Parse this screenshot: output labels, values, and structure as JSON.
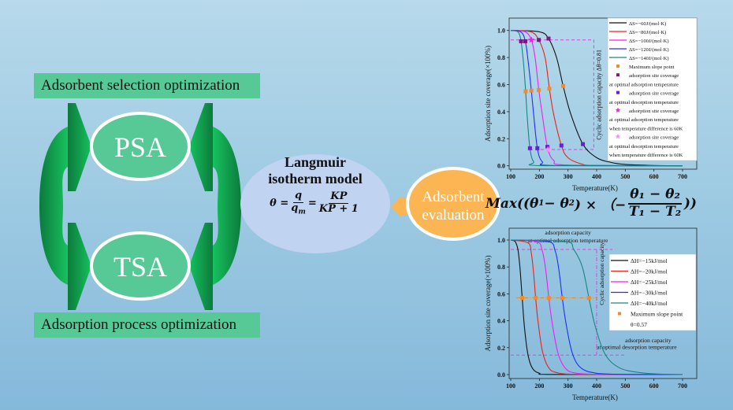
{
  "left": {
    "top_label": "Adsorbent selection optimization",
    "bottom_label": "Adsorption process optimization",
    "psa": "PSA",
    "tsa": "TSA"
  },
  "center": {
    "title_line1": "Langmuir",
    "title_line2": "isotherm model",
    "eq_lhs": "θ =",
    "eq_q": "q",
    "eq_qm": "q",
    "eq_qm_sub": "m",
    "eq_eq2": "=",
    "eq_kp": "KP",
    "eq_kp1": "KP + 1"
  },
  "evaluation": {
    "line1": "Adsorbent",
    "line2": "evaluation"
  },
  "objective": {
    "prefix": "Max((θ",
    "s1": "1",
    "minus": " − θ",
    "s2": "2",
    "mid": ") × （−",
    "num": "θ₁ − θ₂",
    "den": "T₁ − T₂",
    "suffix": "))"
  },
  "colors": {
    "green_box": "#56c996",
    "arrow_green": "#12a050",
    "langmuir": "#c0d4f2",
    "evaluation": "#fbb552",
    "max_slope": "#f08a2e"
  },
  "chart_data": [
    {
      "type": "line",
      "xlabel": "Temperature(K)",
      "ylabel": "Adsorption site coverage(×100%)",
      "xlim": [
        100,
        700
      ],
      "ylim": [
        0,
        1.0
      ],
      "xticks": [
        "100",
        "200",
        "300",
        "400",
        "500",
        "600",
        "700"
      ],
      "yticks": [
        "0.0",
        "0.2",
        "0.4",
        "0.6",
        "0.8",
        "1.0"
      ],
      "grid": false,
      "legend_placement": "top-right",
      "series": [
        {
          "name": "ΔS=−60J/(mol·K)",
          "color": "#111111",
          "points": [
            [
              100,
              1
            ],
            [
              200,
              0.99
            ],
            [
              232,
              0.94
            ],
            [
              260,
              0.8
            ],
            [
              283,
              0.59
            ],
            [
              310,
              0.38
            ],
            [
              352,
              0.16
            ],
            [
              400,
              0.06
            ],
            [
              450,
              0.025
            ],
            [
              500,
              0.01
            ],
            [
              600,
              0.002
            ],
            [
              700,
              0
            ]
          ]
        },
        {
          "name": "ΔS=−80J/(mol·K)",
          "color": "#e8231c",
          "points": [
            [
              100,
              1
            ],
            [
              170,
              0.99
            ],
            [
              198,
              0.93
            ],
            [
              220,
              0.8
            ],
            [
              235,
              0.57
            ],
            [
              250,
              0.38
            ],
            [
              277,
              0.15
            ],
            [
              300,
              0.06
            ],
            [
              350,
              0.012
            ],
            [
              400,
              0.003
            ],
            [
              700,
              0
            ]
          ]
        },
        {
          "name": "ΔS=−100J/(mol·K)",
          "color": "#f01ef0",
          "points": [
            [
              100,
              1
            ],
            [
              150,
              0.99
            ],
            [
              172,
              0.93
            ],
            [
              185,
              0.8
            ],
            [
              198,
              0.56
            ],
            [
              210,
              0.38
            ],
            [
              228,
              0.14
            ],
            [
              250,
              0.04
            ],
            [
              300,
              0.005
            ],
            [
              700,
              0
            ]
          ]
        },
        {
          "name": "ΔS=−120J/(mol·K)",
          "color": "#2030f0",
          "points": [
            [
              100,
              1
            ],
            [
              135,
              0.99
            ],
            [
              151,
              0.92
            ],
            [
              162,
              0.75
            ],
            [
              172,
              0.555
            ],
            [
              180,
              0.38
            ],
            [
              193,
              0.13
            ],
            [
              210,
              0.03
            ],
            [
              250,
              0.002
            ],
            [
              700,
              0
            ]
          ]
        },
        {
          "name": "ΔS=−140J/(mol·K)",
          "color": "#17877f",
          "points": [
            [
              100,
              1
            ],
            [
              125,
              0.99
            ],
            [
              136,
              0.92
            ],
            [
              145,
              0.75
            ],
            [
              152,
              0.55
            ],
            [
              158,
              0.35
            ],
            [
              167,
              0.13
            ],
            [
              180,
              0.03
            ],
            [
              210,
              0.001
            ],
            [
              700,
              0
            ]
          ]
        }
      ],
      "markers": [
        {
          "name": "Maximum slope point",
          "label_lines": [
            "Maximum slope point"
          ],
          "shape": "square",
          "color": "#f08a2e",
          "points": [
            [
              152,
              0.55
            ],
            [
              172,
              0.555
            ],
            [
              198,
              0.56
            ],
            [
              235,
              0.57
            ],
            [
              283,
              0.59
            ]
          ]
        },
        {
          "name": "adsorption site coverage at optimal adsorption temperature",
          "label_lines": [
            "adsorption site coverage",
            "at optimal adsorption temperature"
          ],
          "shape": "square",
          "color": "#7a1a80",
          "points": [
            [
              136,
              0.92
            ],
            [
              151,
              0.92
            ],
            [
              198,
              0.93
            ],
            [
              232,
              0.94
            ]
          ]
        },
        {
          "name": "adsorption site coverage at optimal desorption temperature",
          "label_lines": [
            "adsorption site coverage",
            "at optimal desorption temperature"
          ],
          "shape": "square",
          "color": "#6a1ed0",
          "points": [
            [
              167,
              0.13
            ],
            [
              193,
              0.13
            ],
            [
              228,
              0.14
            ],
            [
              277,
              0.15
            ],
            [
              352,
              0.16
            ]
          ]
        },
        {
          "name": "adsorption site coverage at optimal adsorption temperature when temperature difference is 60K",
          "label_lines": [
            "adsorption site coverage",
            "at optimal adsorption temperature",
            "when temperature difference is 60K"
          ],
          "shape": "star",
          "color": "#f01ef0",
          "points": [
            [
              172,
              0.93
            ]
          ]
        },
        {
          "name": "adsorption site coverage at optimal desorption temperature when temperature difference is 60K",
          "label_lines": [
            "adsorption site coverage",
            "at optimal desorption temperature",
            "when temperature difference is 60K"
          ],
          "shape": "star",
          "color": "#f68ff0",
          "points": [
            [
              230,
              0.12
            ]
          ]
        }
      ],
      "guides": {
        "upper_y": 0.93,
        "lower_y": 0.12,
        "x": 390,
        "color": "#e040e0"
      },
      "annotations": [
        "Cyclic adsorption capacity Δθ=0.81"
      ]
    },
    {
      "type": "line",
      "xlabel": "Temperature(K)",
      "ylabel": "Adsorption site coverage(×100%)",
      "xlim": [
        100,
        700
      ],
      "ylim": [
        0,
        1.0
      ],
      "xticks": [
        "100",
        "200",
        "300",
        "400",
        "500",
        "600",
        "700"
      ],
      "yticks": [
        "0.0",
        "0.2",
        "0.4",
        "0.6",
        "0.8",
        "1.0"
      ],
      "grid": false,
      "legend_placement": "right",
      "series": [
        {
          "name": "ΔH=−15kJ/mol",
          "color": "#111111",
          "points": [
            [
              100,
              1
            ],
            [
              115,
              0.99
            ],
            [
              125,
              0.93
            ],
            [
              132,
              0.8
            ],
            [
              140,
              0.57
            ],
            [
              148,
              0.35
            ],
            [
              160,
              0.15
            ],
            [
              175,
              0.05
            ],
            [
              200,
              0.01
            ],
            [
              250,
              0.001
            ],
            [
              700,
              0
            ]
          ]
        },
        {
          "name": "ΔH=−20kJ/mol",
          "color": "#e8231c",
          "points": [
            [
              100,
              1
            ],
            [
              160,
              0.98
            ],
            [
              172,
              0.9
            ],
            [
              180,
              0.75
            ],
            [
              187,
              0.57
            ],
            [
              195,
              0.4
            ],
            [
              210,
              0.18
            ],
            [
              230,
              0.06
            ],
            [
              260,
              0.015
            ],
            [
              350,
              0.001
            ],
            [
              700,
              0
            ]
          ]
        },
        {
          "name": "ΔH=−25kJ/mol",
          "color": "#f01ef0",
          "points": [
            [
              100,
              1
            ],
            [
              190,
              0.99
            ],
            [
              210,
              0.92
            ],
            [
              222,
              0.78
            ],
            [
              233,
              0.57
            ],
            [
              245,
              0.38
            ],
            [
              265,
              0.16
            ],
            [
              290,
              0.05
            ],
            [
              330,
              0.01
            ],
            [
              450,
              0.001
            ],
            [
              700,
              0
            ]
          ]
        },
        {
          "name": "ΔH=−30kJ/mol",
          "color": "#2030f0",
          "points": [
            [
              100,
              1
            ],
            [
              230,
              0.99
            ],
            [
              255,
              0.92
            ],
            [
              268,
              0.78
            ],
            [
              280,
              0.57
            ],
            [
              293,
              0.38
            ],
            [
              315,
              0.16
            ],
            [
              345,
              0.05
            ],
            [
              400,
              0.01
            ],
            [
              500,
              0.001
            ],
            [
              700,
              0
            ]
          ]
        },
        {
          "name": "ΔH=−40kJ/mol",
          "color": "#17877f",
          "points": [
            [
              100,
              1
            ],
            [
              290,
              0.99
            ],
            [
              320,
              0.93
            ],
            [
              350,
              0.8
            ],
            [
              373,
              0.57
            ],
            [
              395,
              0.36
            ],
            [
              430,
              0.15
            ],
            [
              480,
              0.05
            ],
            [
              550,
              0.015
            ],
            [
              620,
              0.004
            ],
            [
              700,
              0.001
            ]
          ]
        }
      ],
      "markers": [
        {
          "name": "Maximum slope point",
          "label_lines": [
            "Maximum slope point"
          ],
          "shape": "square",
          "color": "#f08a2e",
          "points": [
            [
              140,
              0.57
            ],
            [
              187,
              0.57
            ],
            [
              233,
              0.57
            ],
            [
              280,
              0.57
            ],
            [
              373,
              0.57
            ]
          ]
        }
      ],
      "legend_extra": "θ=0.57",
      "guides": {
        "upper_y": 0.93,
        "lower_y": 0.145,
        "x": 400,
        "slope_y": 0.57,
        "color": "#e040e0"
      },
      "annotations": [
        "adsorption capacity",
        "at optimal adsorption temperature",
        "Cyclic adsorption capacity",
        "adsorption capacity",
        "at optimal desorption temperature"
      ]
    }
  ]
}
